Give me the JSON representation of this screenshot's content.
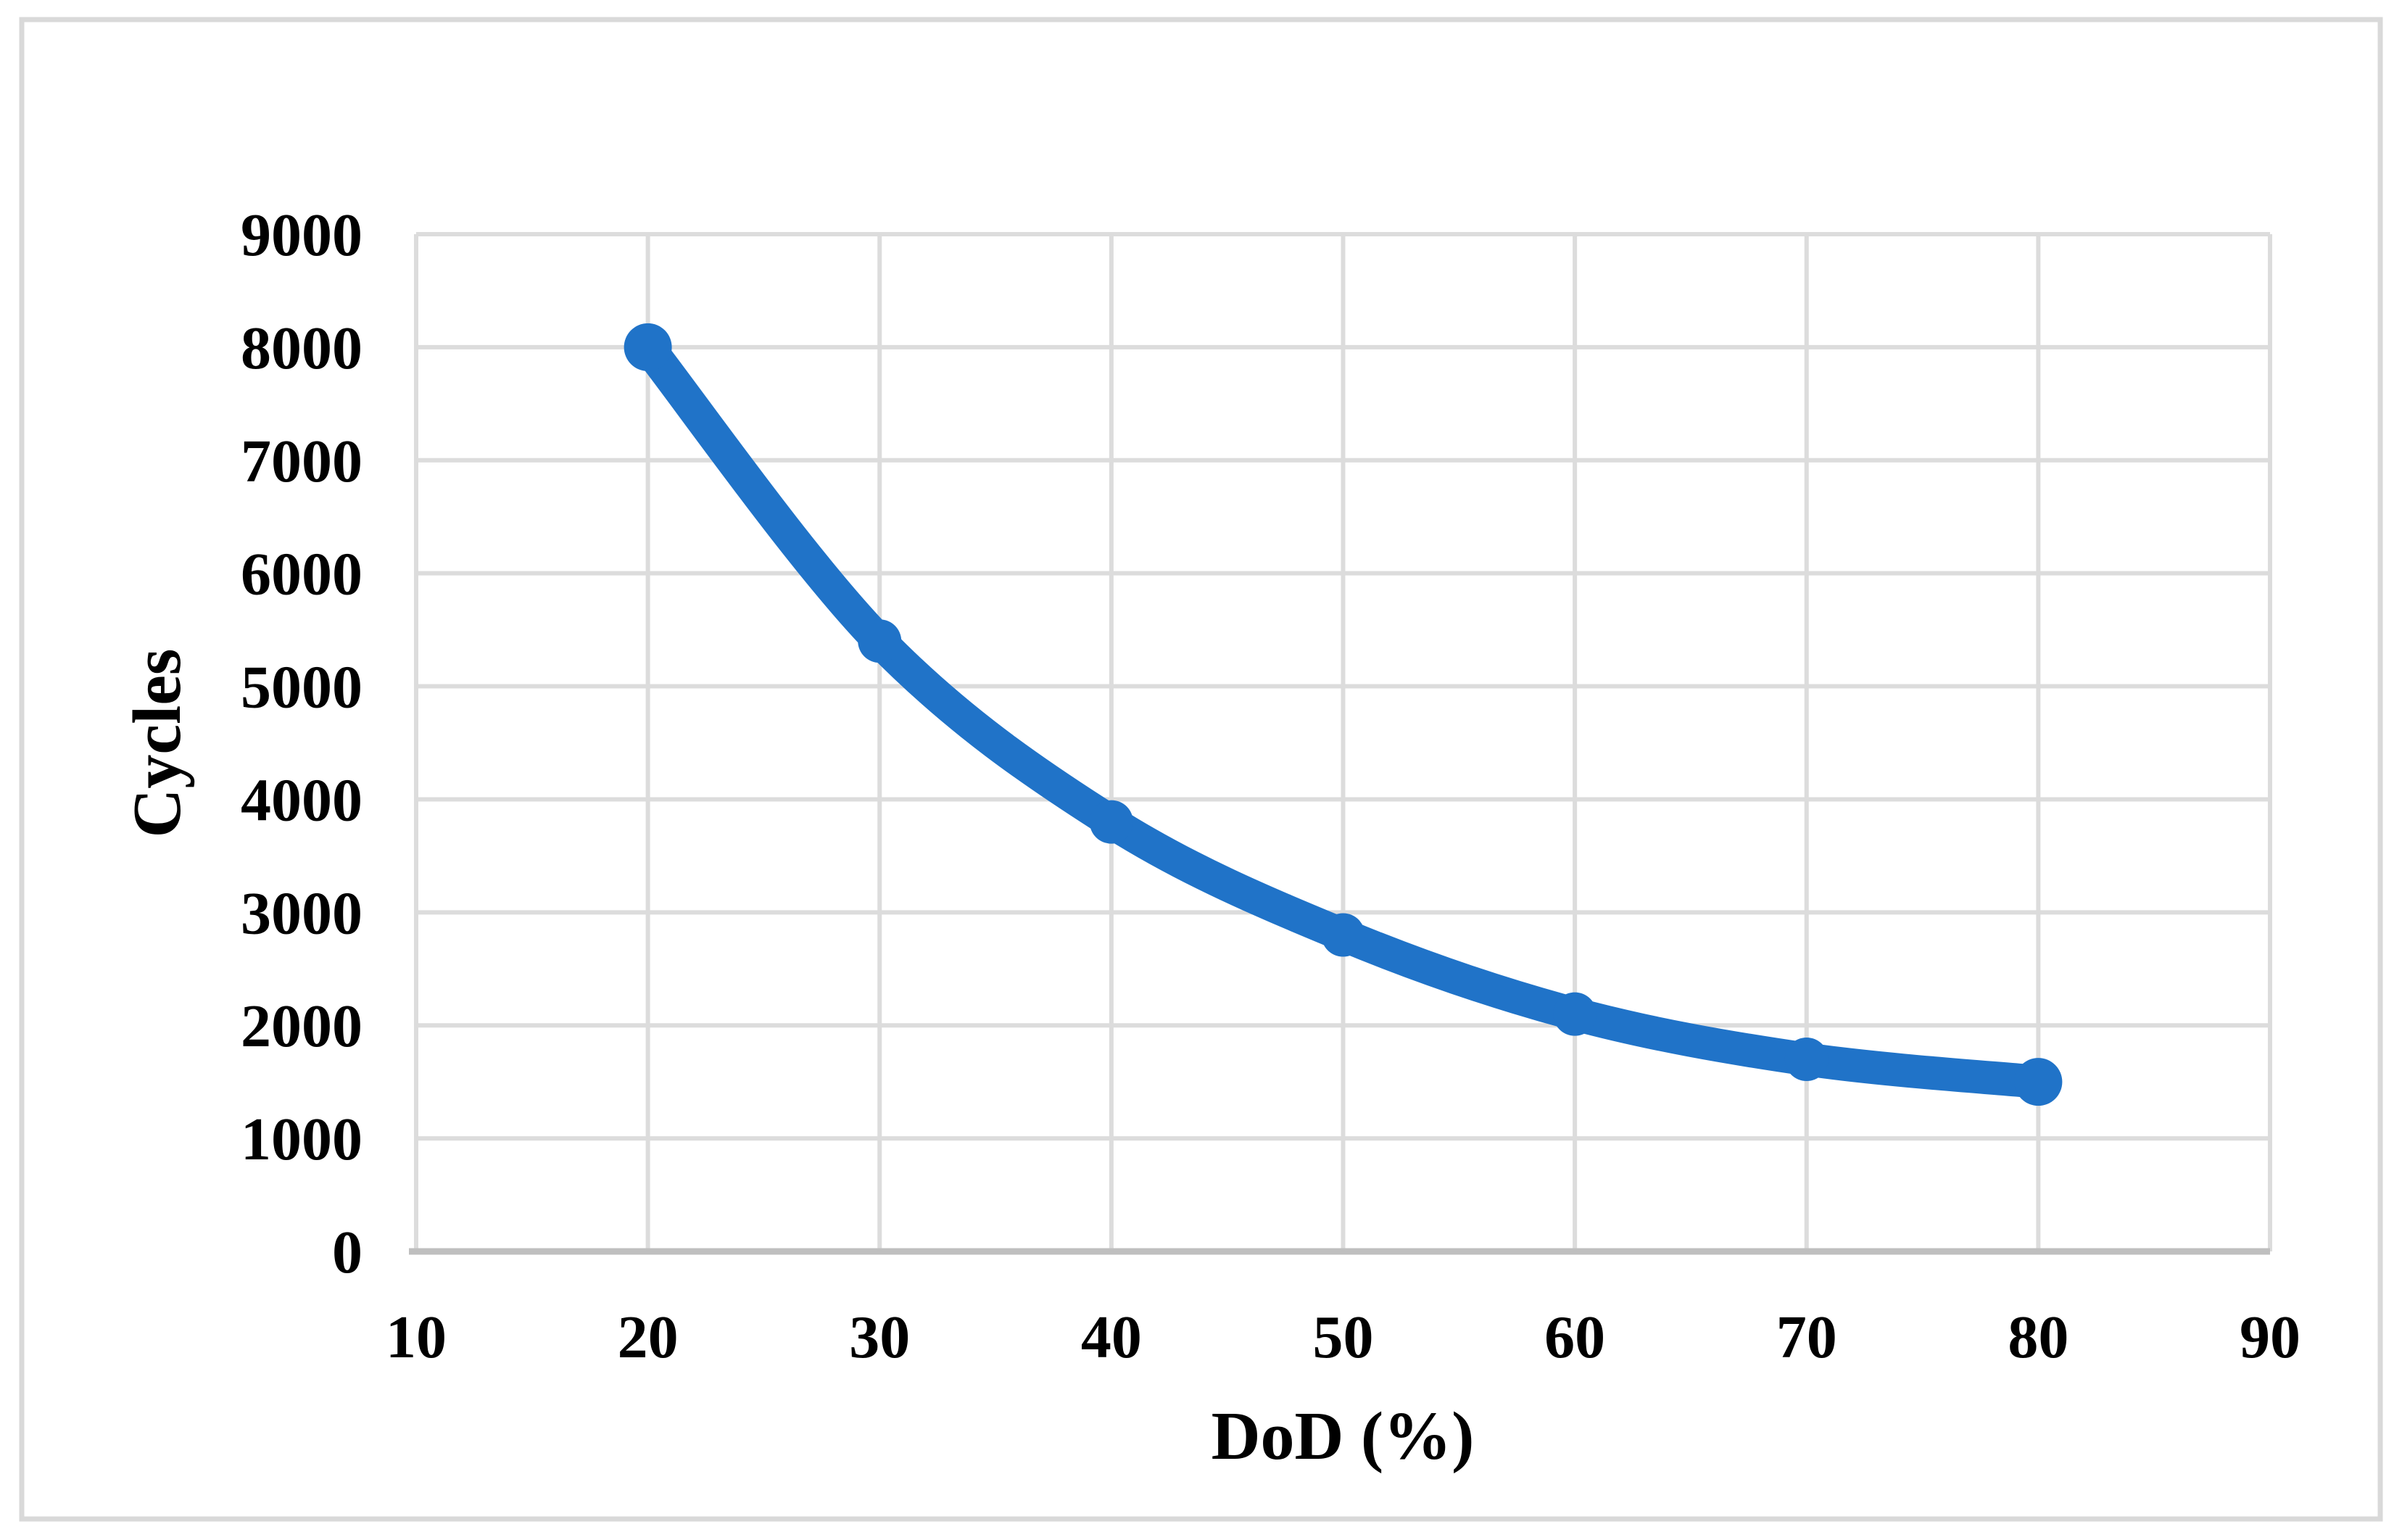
{
  "figure": {
    "background": "#ffffff",
    "border_color": "#d9d9d9"
  },
  "chart_data": {
    "type": "line",
    "title": "",
    "xlabel": "DoD (%)",
    "ylabel": "Cycles",
    "x": [
      20,
      30,
      40,
      50,
      60,
      70,
      80
    ],
    "values": [
      8000,
      5400,
      3800,
      2800,
      2100,
      1700,
      1500
    ],
    "series_color": "#2073c8",
    "marker": "circle",
    "smooth": true,
    "xlim": [
      10,
      90
    ],
    "ylim": [
      0,
      9000
    ],
    "xticks": [
      10,
      20,
      30,
      40,
      50,
      60,
      70,
      80,
      90
    ],
    "yticks": [
      0,
      1000,
      2000,
      3000,
      4000,
      5000,
      6000,
      7000,
      8000,
      9000
    ],
    "grid": true,
    "gridline_color": "#dcdcdc",
    "axis_line_color": "#bfbfbf",
    "legend": "none"
  }
}
